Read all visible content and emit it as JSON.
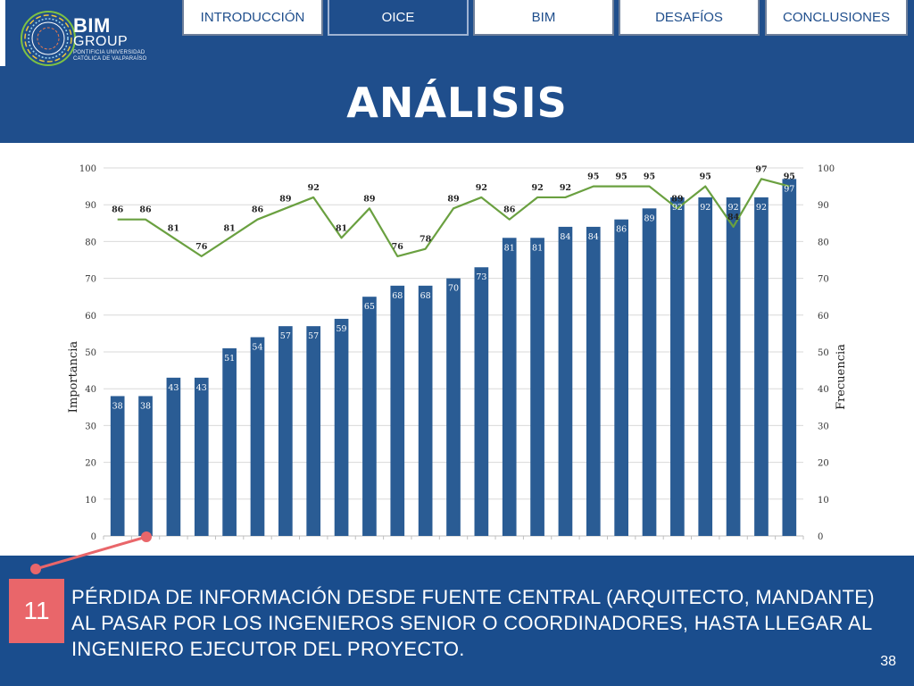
{
  "header": {
    "logo": {
      "name": "BIM",
      "sub": "GROUP",
      "line1": "PONTIFICIA UNIVERSIDAD",
      "line2": "CATÓLICA DE VALPARAÍSO"
    },
    "nav": [
      {
        "label": "INTRODUCCIÓN",
        "active": false
      },
      {
        "label": "OICE",
        "active": true
      },
      {
        "label": "BIM",
        "active": false
      },
      {
        "label": "DESAFÍOS",
        "active": false
      },
      {
        "label": "CONCLUSIONES",
        "active": false
      }
    ],
    "title": "ANÁLISIS"
  },
  "chart_data": {
    "type": "bar+line",
    "ylabel_left": "Importancia",
    "ylabel_right": "Frecuencia",
    "ylim": [
      0,
      100
    ],
    "yticks": [
      0,
      10,
      20,
      30,
      40,
      50,
      60,
      70,
      80,
      90,
      100
    ],
    "series": [
      {
        "name": "Importancia",
        "type": "bar",
        "values": [
          38,
          38,
          43,
          43,
          51,
          54,
          57,
          57,
          59,
          65,
          68,
          68,
          70,
          73,
          81,
          81,
          84,
          84,
          86,
          89,
          92,
          92,
          92,
          92,
          97
        ]
      },
      {
        "name": "Frecuencia",
        "type": "line",
        "values": [
          86,
          86,
          81,
          76,
          81,
          86,
          89,
          92,
          81,
          89,
          76,
          78,
          89,
          92,
          86,
          92,
          92,
          95,
          95,
          95,
          89,
          95,
          84,
          97,
          95
        ]
      }
    ],
    "grid": true,
    "colors": {
      "bar": "#2a5c94",
      "line": "#6aa040",
      "bar_label": "#ffffff"
    }
  },
  "highlight": {
    "number": "11",
    "color": "#e9666a"
  },
  "description": "PÉRDIDA DE INFORMACIÓN DESDE FUENTE CENTRAL (ARQUITECTO, MANDANTE) AL PASAR POR LOS INGENIEROS SENIOR O COORDINADORES, HASTA LLEGAR AL INGENIERO EJECUTOR DEL PROYECTO.",
  "page_number": "38"
}
